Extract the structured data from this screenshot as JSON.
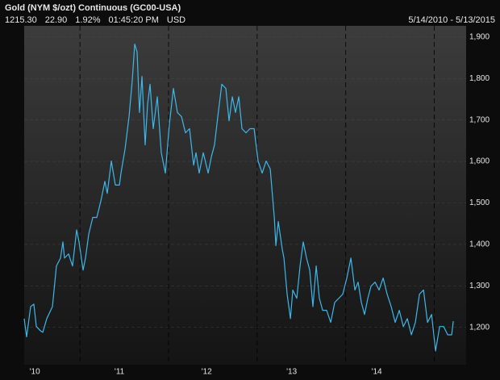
{
  "chart_data": {
    "type": "line",
    "title": "Gold (NYM $/ozt) Continuous (GC00-USA)",
    "quote": [
      "1215.30",
      "22.90",
      "1.92%",
      "01:45:20 PM",
      "USD"
    ],
    "date_range": "5/14/2010 - 5/13/2015",
    "xlim": [
      2010.37,
      2015.36
    ],
    "ylim": [
      1110,
      1927
    ],
    "xticks": [
      {
        "value": 2010.49,
        "label": "'10"
      },
      {
        "value": 2011.445,
        "label": "'11"
      },
      {
        "value": 2012.43,
        "label": "'12"
      },
      {
        "value": 2013.39,
        "label": "'13"
      },
      {
        "value": 2014.35,
        "label": "'14"
      }
    ],
    "xgrid": [
      2011,
      2012,
      2013,
      2014,
      2015
    ],
    "yticks": [
      {
        "value": 1200,
        "label": "1,200"
      },
      {
        "value": 1300,
        "label": "1,300"
      },
      {
        "value": 1400,
        "label": "1,400"
      },
      {
        "value": 1500,
        "label": "1,500"
      },
      {
        "value": 1600,
        "label": "1,600"
      },
      {
        "value": 1700,
        "label": "1,700"
      },
      {
        "value": 1800,
        "label": "1,800"
      },
      {
        "value": 1900,
        "label": "1,900"
      }
    ],
    "grid": true,
    "x": [
      2010.37,
      2010.397,
      2010.443,
      2010.479,
      2010.507,
      2010.552,
      2010.58,
      2010.625,
      2010.689,
      2010.734,
      2010.78,
      2010.807,
      2010.825,
      2010.871,
      2010.916,
      2010.962,
      2010.989,
      2011.035,
      2011.062,
      2011.099,
      2011.144,
      2011.19,
      2011.235,
      2011.281,
      2011.308,
      2011.354,
      2011.399,
      2011.445,
      2011.463,
      2011.509,
      2011.554,
      2011.59,
      2011.618,
      2011.645,
      2011.672,
      2011.7,
      2011.736,
      2011.763,
      2011.791,
      2011.827,
      2011.873,
      2011.918,
      2011.964,
      2012.009,
      2012.055,
      2012.1,
      2012.146,
      2012.191,
      2012.237,
      2012.283,
      2012.31,
      2012.346,
      2012.392,
      2012.447,
      2012.483,
      2012.519,
      2012.556,
      2012.601,
      2012.647,
      2012.683,
      2012.72,
      2012.756,
      2012.793,
      2012.829,
      2012.874,
      2012.92,
      2012.966,
      2013.011,
      2013.057,
      2013.102,
      2013.148,
      2013.194,
      2013.212,
      2013.239,
      2013.285,
      2013.303,
      2013.339,
      2013.376,
      2013.403,
      2013.448,
      2013.485,
      2013.521,
      2013.558,
      2013.594,
      2013.63,
      2013.667,
      2013.703,
      2013.74,
      2013.785,
      2013.831,
      2013.876,
      2013.922,
      2013.967,
      2014.013,
      2014.059,
      2014.104,
      2014.14,
      2014.177,
      2014.213,
      2014.25,
      2014.286,
      2014.332,
      2014.377,
      2014.423,
      2014.468,
      2014.514,
      2014.559,
      2014.605,
      2014.651,
      2014.696,
      2014.742,
      2014.787,
      2014.833,
      2014.879,
      2014.924,
      2014.97,
      2015.015,
      2015.061,
      2015.106,
      2015.152,
      2015.197,
      2015.215
    ],
    "series": [
      {
        "name": "Gold",
        "color": "#3db8ec",
        "values": [
          1221,
          1177,
          1250,
          1256,
          1202,
          1192,
          1188,
          1221,
          1250,
          1348,
          1367,
          1406,
          1367,
          1377,
          1348,
          1435,
          1406,
          1338,
          1367,
          1425,
          1465,
          1465,
          1504,
          1552,
          1523,
          1601,
          1543,
          1543,
          1572,
          1630,
          1708,
          1795,
          1883,
          1864,
          1718,
          1805,
          1640,
          1737,
          1786,
          1679,
          1756,
          1621,
          1572,
          1689,
          1776,
          1718,
          1708,
          1669,
          1679,
          1591,
          1621,
          1572,
          1621,
          1572,
          1611,
          1640,
          1708,
          1786,
          1776,
          1698,
          1756,
          1718,
          1756,
          1679,
          1669,
          1679,
          1679,
          1601,
          1572,
          1601,
          1582,
          1465,
          1397,
          1455,
          1387,
          1367,
          1280,
          1221,
          1290,
          1270,
          1348,
          1406,
          1367,
          1338,
          1250,
          1348,
          1270,
          1241,
          1241,
          1212,
          1260,
          1270,
          1280,
          1319,
          1367,
          1290,
          1309,
          1260,
          1231,
          1270,
          1299,
          1309,
          1290,
          1319,
          1280,
          1250,
          1212,
          1241,
          1202,
          1221,
          1182,
          1212,
          1280,
          1290,
          1212,
          1231,
          1143,
          1202,
          1202,
          1182,
          1182,
          1215
        ]
      }
    ]
  }
}
